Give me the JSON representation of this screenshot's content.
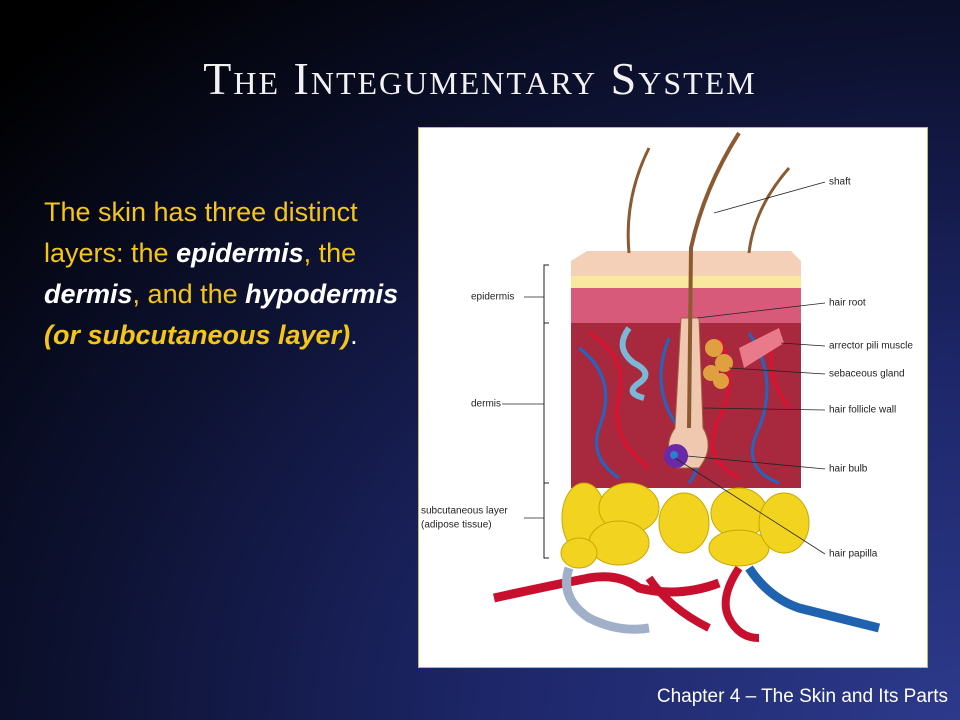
{
  "slide": {
    "title": "The Integumentary System",
    "body": [
      "The skin has three distinct layers: the ",
      "epidermis",
      ", the ",
      "dermis",
      ", and the ",
      "hypodermis",
      " (or subcutaneous layer)",
      "."
    ],
    "footer": "Chapter 4 – The Skin and Its Parts"
  },
  "diagram": {
    "right_labels": [
      "shaft",
      "hair root",
      "arrector pili muscle",
      "sebaceous gland",
      "hair follicle wall",
      "hair bulb",
      "hair papilla"
    ],
    "left_labels": [
      "epidermis",
      "dermis",
      "subcutaneous layer",
      "(adipose tissue)"
    ]
  }
}
